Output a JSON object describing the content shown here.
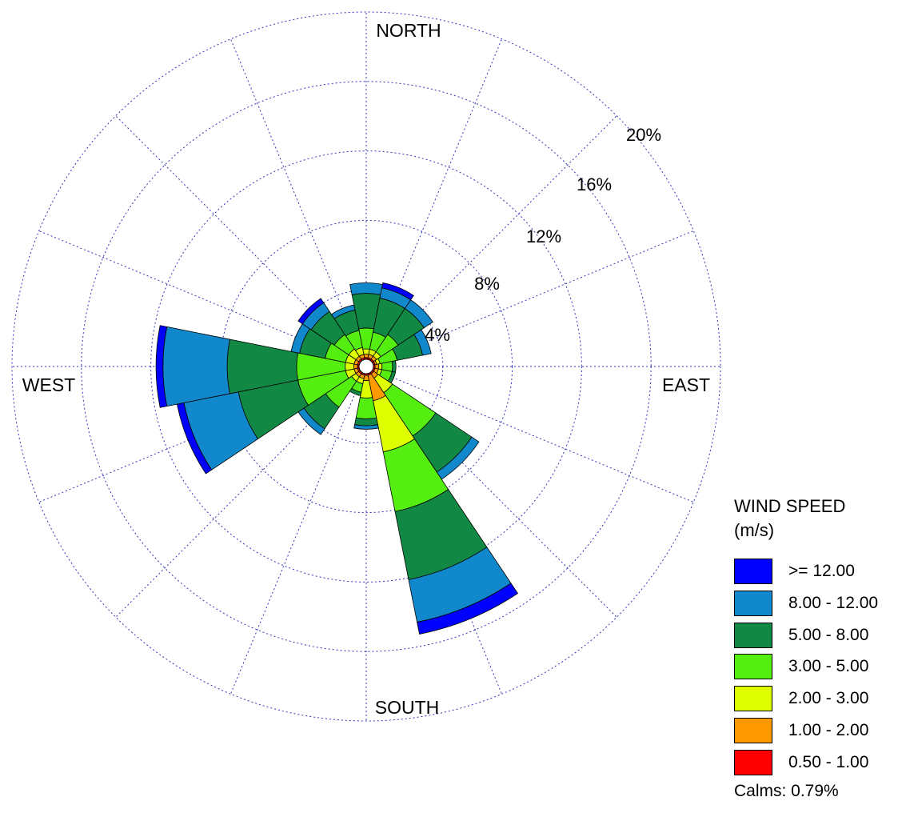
{
  "chart_data": {
    "type": "wind-rose",
    "title": "",
    "directions": [
      "N",
      "NNE",
      "NE",
      "ENE",
      "E",
      "ESE",
      "SE",
      "SSE",
      "S",
      "SSW",
      "SW",
      "WSW",
      "W",
      "WNW",
      "NW",
      "NNW"
    ],
    "direction_labels": {
      "north": "NORTH",
      "east": "EAST",
      "south": "SOUTH",
      "west": "WEST"
    },
    "radial_ticks": [
      4,
      8,
      12,
      16,
      20
    ],
    "radial_tick_labels": [
      "4%",
      "8%",
      "12%",
      "16%",
      "20%"
    ],
    "radial_max": 20,
    "inner_calm_circle": true,
    "grid": "dotted",
    "legend": {
      "title_line1": "WIND SPEED",
      "title_line2": "(m/s)",
      "placement": "bottom-right"
    },
    "bins": [
      {
        "label": "0.50 - 1.00",
        "color": "#ff0000"
      },
      {
        "label": "1.00 - 2.00",
        "color": "#ff9900"
      },
      {
        "label": "2.00 - 3.00",
        "color": "#ddff00"
      },
      {
        "label": "3.00 - 5.00",
        "color": "#55ee11"
      },
      {
        "label": "5.00 - 8.00",
        "color": "#118844"
      },
      {
        "label": "8.00 - 12.00",
        "color": "#1188cc"
      },
      {
        "label": ">= 12.00",
        "color": "#0000ff"
      }
    ],
    "frequencies_percent": {
      "N": [
        0.1,
        0.2,
        0.3,
        1.2,
        2.0,
        0.6,
        0.0
      ],
      "NNE": [
        0.1,
        0.2,
        0.3,
        1.0,
        2.0,
        0.6,
        0.3
      ],
      "NE": [
        0.1,
        0.2,
        0.3,
        1.2,
        1.8,
        0.6,
        0.0
      ],
      "ENE": [
        0.1,
        0.1,
        0.2,
        1.0,
        1.5,
        0.5,
        0.0
      ],
      "E": [
        0.1,
        0.2,
        0.2,
        0.6,
        0.2,
        0.0,
        0.0
      ],
      "ESE": [
        0.1,
        0.2,
        0.2,
        0.6,
        0.2,
        0.0,
        0.0
      ],
      "SE": [
        0.1,
        0.3,
        1.0,
        3.0,
        2.5,
        0.5,
        0.0
      ],
      "SSE": [
        0.1,
        1.5,
        3.0,
        3.5,
        4.0,
        2.5,
        0.7
      ],
      "S": [
        0.1,
        0.3,
        1.0,
        1.2,
        0.4,
        0.2,
        0.0
      ],
      "SSW": [
        0.1,
        0.2,
        0.3,
        0.5,
        0.2,
        0.0,
        0.0
      ],
      "SW": [
        0.1,
        0.2,
        0.3,
        1.8,
        1.5,
        0.4,
        0.0
      ],
      "WSW": [
        0.1,
        0.2,
        0.5,
        2.8,
        3.5,
        3.2,
        0.4
      ],
      "W": [
        0.1,
        0.2,
        0.5,
        2.8,
        4.0,
        3.7,
        0.4
      ],
      "WNW": [
        0.1,
        0.2,
        0.5,
        1.2,
        1.5,
        0.5,
        0.0
      ],
      "NW": [
        0.1,
        0.2,
        0.5,
        1.0,
        1.6,
        0.6,
        0.3
      ],
      "NNW": [
        0.1,
        0.2,
        0.4,
        1.0,
        1.2,
        0.3,
        0.0
      ]
    },
    "calms_label": "Calms: 0.79%"
  }
}
